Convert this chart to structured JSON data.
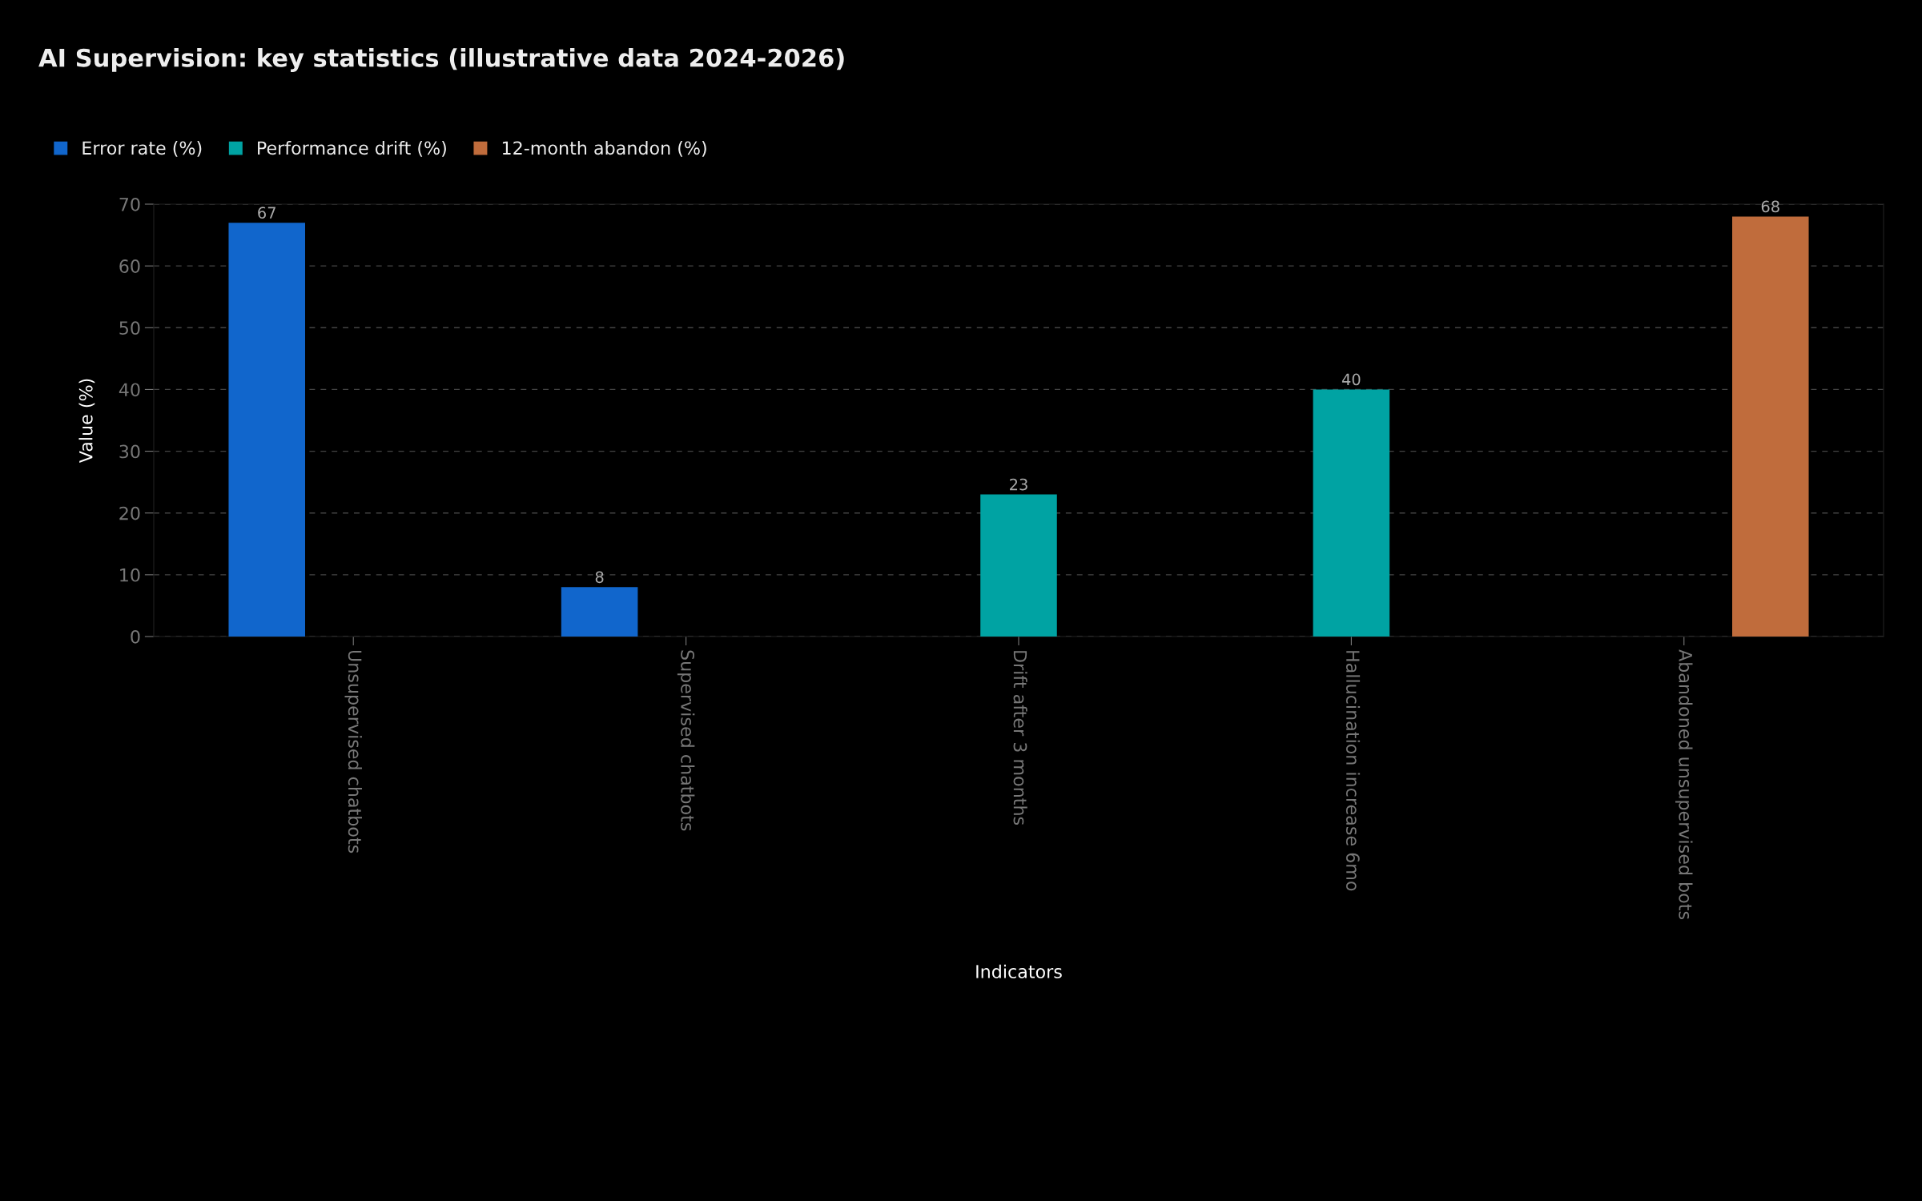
{
  "chart_data": {
    "type": "bar",
    "title": "AI Supervision: key statistics (illustrative data 2024-2026)",
    "xlabel": "Indicators",
    "ylabel": "Value (%)",
    "categories": [
      "Unsupervised chatbots",
      "Supervised chatbots",
      "Drift after 3 months",
      "Hallucination increase 6mo",
      "Abandoned unsupervised bots"
    ],
    "series": [
      {
        "name": "Error rate (%)",
        "color": "#1166cc",
        "values": [
          67,
          8,
          null,
          null,
          null
        ]
      },
      {
        "name": "Performance drift (%)",
        "color": "#00a3a3",
        "values": [
          null,
          null,
          23,
          40,
          null
        ]
      },
      {
        "name": "12-month abandon (%)",
        "color": "#c06c3c",
        "values": [
          null,
          null,
          null,
          null,
          68
        ]
      }
    ],
    "ylim": [
      0,
      70
    ],
    "yticks": [
      0,
      10,
      20,
      30,
      40,
      50,
      60,
      70
    ],
    "grid": "y",
    "legend": "top left",
    "data_labels": true
  }
}
